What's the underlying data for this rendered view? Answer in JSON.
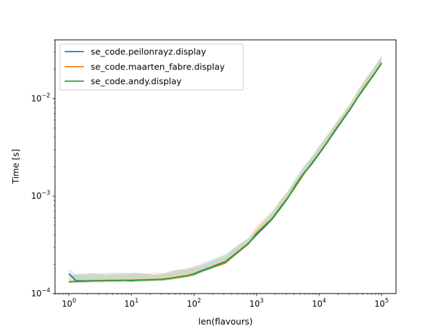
{
  "chart_data": {
    "type": "line",
    "title": "",
    "xlabel": "len(flavours)",
    "ylabel": "Time [s]",
    "xscale": "log",
    "yscale": "log",
    "xlim": [
      0.6,
      170000
    ],
    "ylim": [
      0.0001,
      0.04
    ],
    "xticks": [
      {
        "value": 1,
        "base": "10",
        "exp": "0"
      },
      {
        "value": 10,
        "base": "10",
        "exp": "1"
      },
      {
        "value": 100,
        "base": "10",
        "exp": "2"
      },
      {
        "value": 1000,
        "base": "10",
        "exp": "3"
      },
      {
        "value": 10000,
        "base": "10",
        "exp": "4"
      },
      {
        "value": 100000,
        "base": "10",
        "exp": "5"
      }
    ],
    "yticks": [
      {
        "value": 0.0001,
        "base": "10",
        "exp": "−4"
      },
      {
        "value": 0.001,
        "base": "10",
        "exp": "−3"
      },
      {
        "value": 0.01,
        "base": "10",
        "exp": "−2"
      }
    ],
    "grid": false,
    "legend_position": "upper left",
    "x": [
      1,
      1.3,
      1.8,
      2.4,
      3.2,
      4.2,
      5.6,
      7.5,
      10,
      13.3,
      17.8,
      23.7,
      31.6,
      42,
      56,
      75,
      100,
      133,
      178,
      237,
      316,
      422,
      562,
      750,
      1000,
      1333,
      1778,
      2371,
      3162,
      4217,
      5623,
      7499,
      10000,
      13335,
      17783,
      23714,
      31623,
      42170,
      56234,
      74989,
      100000
    ],
    "series": [
      {
        "name": "se_code.peilonrayz.display",
        "color": "#1f77b4",
        "values": [
          0.00016,
          0.000136,
          0.000135,
          0.000136,
          0.000136,
          0.000136,
          0.000136,
          0.000137,
          0.000137,
          0.000138,
          0.000138,
          0.000139,
          0.00014,
          0.000143,
          0.000148,
          0.000152,
          0.00016,
          0.000172,
          0.000184,
          0.000198,
          0.000212,
          0.000245,
          0.000284,
          0.00033,
          0.0004,
          0.00048,
          0.00058,
          0.00074,
          0.00095,
          0.0013,
          0.0017,
          0.0021,
          0.0027,
          0.0035,
          0.0046,
          0.006,
          0.0078,
          0.0104,
          0.0135,
          0.0175,
          0.023
        ]
      },
      {
        "name": "se_code.maarten_fabre.display",
        "color": "#ff7f0e",
        "values": [
          0.000132,
          0.000133,
          0.000134,
          0.000135,
          0.000136,
          0.000137,
          0.000137,
          0.000137,
          0.000135,
          0.000138,
          0.000139,
          0.00014,
          0.000141,
          0.000144,
          0.000149,
          0.000153,
          0.000158,
          0.00017,
          0.000182,
          0.000192,
          0.000205,
          0.00024,
          0.00028,
          0.000325,
          0.00042,
          0.0005,
          0.00059,
          0.00076,
          0.00096,
          0.00125,
          0.00165,
          0.00215,
          0.00275,
          0.00355,
          0.0047,
          0.0061,
          0.0079,
          0.0105,
          0.0138,
          0.0177,
          0.0232
        ]
      },
      {
        "name": "se_code.andy.display",
        "color": "#2ca02c",
        "values": [
          0.000132,
          0.000133,
          0.000134,
          0.000135,
          0.000135,
          0.000136,
          0.000136,
          0.000137,
          0.000136,
          0.000137,
          0.000138,
          0.000139,
          0.00014,
          0.000143,
          0.000147,
          0.000151,
          0.000157,
          0.00017,
          0.000182,
          0.000196,
          0.00021,
          0.000243,
          0.000282,
          0.000327,
          0.00041,
          0.00049,
          0.000585,
          0.00075,
          0.00096,
          0.00128,
          0.00168,
          0.00212,
          0.00272,
          0.00352,
          0.00465,
          0.00605,
          0.00785,
          0.01045,
          0.0136,
          0.0176,
          0.0231
        ]
      }
    ]
  }
}
